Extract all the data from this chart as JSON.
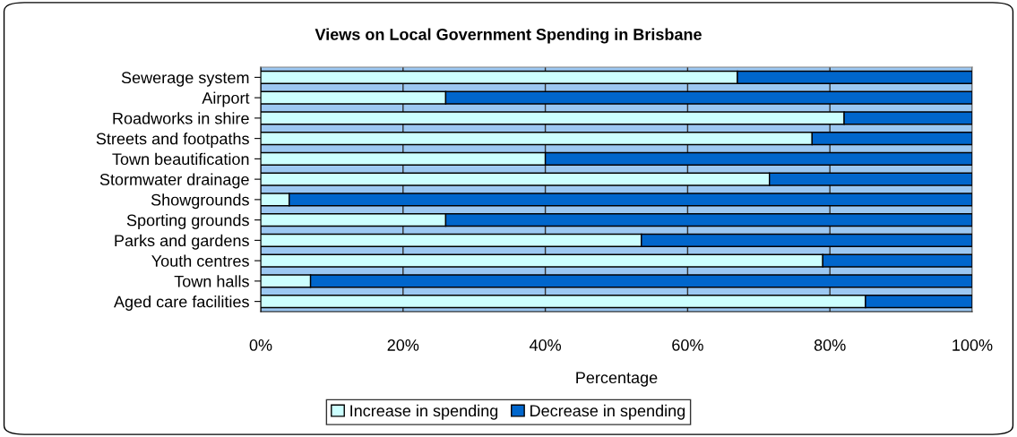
{
  "chart_data": {
    "type": "bar",
    "orientation": "horizontal",
    "stacked": true,
    "title": "Views on Local Government Spending in Brisbane",
    "xlabel": "Percentage",
    "categories": [
      "Sewerage system",
      "Airport",
      "Roadworks in shire",
      "Streets and footpaths",
      "Town beautification",
      "Stormwater drainage",
      "Showgrounds",
      "Sporting grounds",
      "Parks and gardens",
      "Youth centres",
      "Town halls",
      "Aged care facilities"
    ],
    "series": [
      {
        "name": "Increase in spending",
        "color": "#ccffff",
        "values": [
          67,
          26,
          82,
          77.5,
          40,
          71.5,
          4,
          26,
          53.5,
          79,
          7,
          85
        ]
      },
      {
        "name": "Decrease in spending",
        "color": "#0066cc",
        "values": [
          33,
          74,
          18,
          22.5,
          60,
          28.5,
          96,
          74,
          46.5,
          21,
          93,
          15
        ]
      }
    ],
    "xlim": [
      0,
      100
    ],
    "xticks": [
      {
        "value": 0,
        "label": "0%"
      },
      {
        "value": 20,
        "label": "20%"
      },
      {
        "value": 40,
        "label": "40%"
      },
      {
        "value": 60,
        "label": "60%"
      },
      {
        "value": 80,
        "label": "80%"
      },
      {
        "value": 100,
        "label": "100%"
      }
    ],
    "grid": "x",
    "legend": "bottom"
  }
}
